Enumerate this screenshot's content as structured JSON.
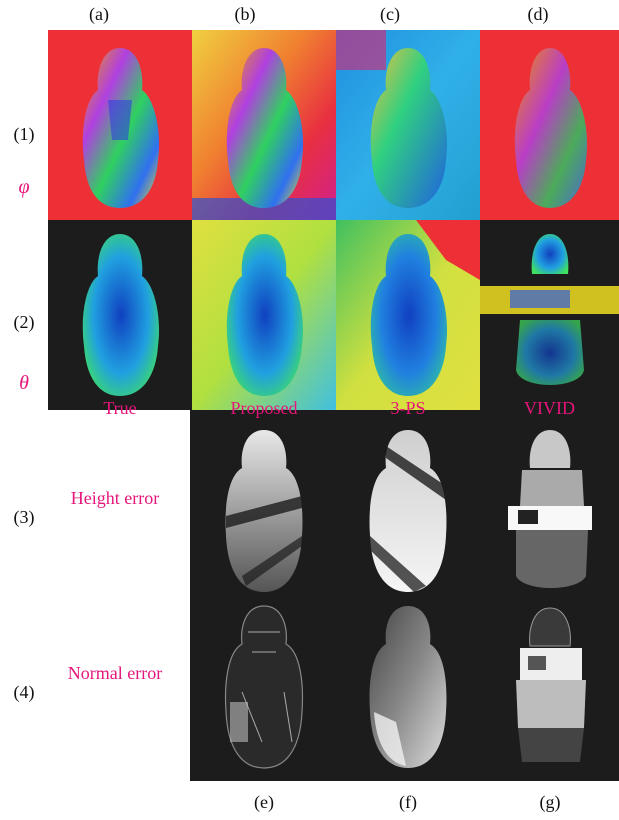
{
  "columns_top": [
    "(a)",
    "(b)",
    "(c)",
    "(d)"
  ],
  "columns_bottom": [
    "(e)",
    "(f)",
    "(g)"
  ],
  "rows": [
    "(1)",
    "(2)",
    "(3)",
    "(4)"
  ],
  "row_symbols": {
    "phi": "φ",
    "theta": "θ"
  },
  "method_labels": [
    "True",
    "Proposed",
    "3-PS",
    "VIVID"
  ],
  "error_labels": {
    "height": "Height error",
    "normal": "Normal error"
  },
  "colors": {
    "accent": "#e6157a",
    "background_dark": "#1c1c1c"
  }
}
